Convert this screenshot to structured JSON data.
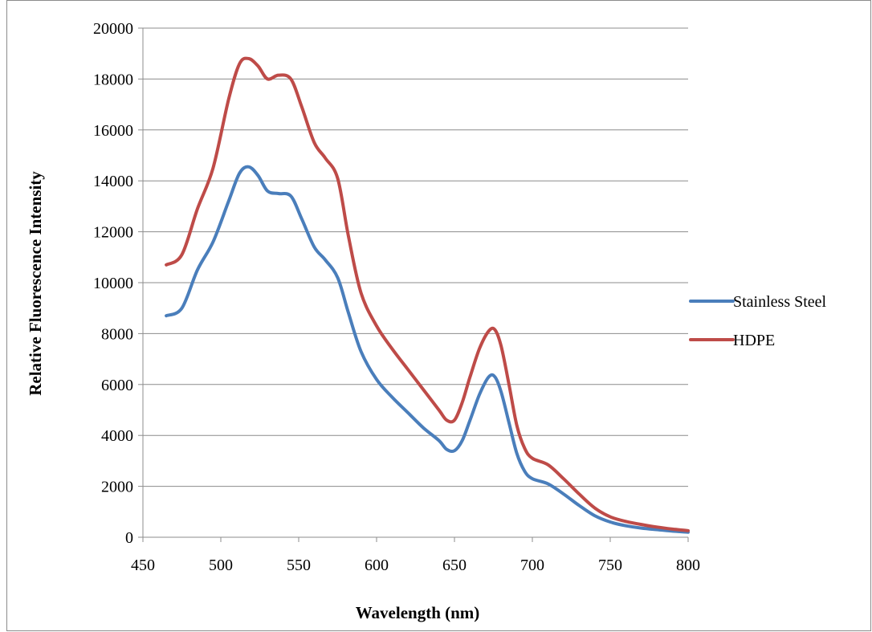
{
  "chart_data": {
    "type": "line",
    "title": "",
    "xlabel": "Wavelength (nm)",
    "ylabel": "Relative Fluorescence Intensity",
    "xlim": [
      450,
      800
    ],
    "ylim": [
      0,
      20000
    ],
    "x_ticks": [
      450,
      500,
      550,
      600,
      650,
      700,
      750,
      800
    ],
    "y_ticks": [
      0,
      2000,
      4000,
      6000,
      8000,
      10000,
      12000,
      14000,
      16000,
      18000,
      20000
    ],
    "grid": "horizontal",
    "legend_position": "right",
    "series": [
      {
        "name": "Stainless Steel",
        "color": "#4a7ebb",
        "x": [
          465,
          475,
          485,
          495,
          505,
          512,
          518,
          524,
          530,
          537,
          545,
          552,
          560,
          567,
          575,
          582,
          590,
          600,
          610,
          620,
          630,
          640,
          645,
          650,
          655,
          660,
          666,
          672,
          676,
          680,
          685,
          690,
          695,
          700,
          710,
          720,
          730,
          740,
          750,
          760,
          770,
          780,
          790,
          800
        ],
        "y": [
          8700,
          9000,
          10500,
          11600,
          13200,
          14300,
          14550,
          14200,
          13600,
          13500,
          13400,
          12500,
          11400,
          10900,
          10200,
          8800,
          7300,
          6200,
          5500,
          4900,
          4300,
          3800,
          3450,
          3400,
          3800,
          4600,
          5600,
          6300,
          6300,
          5700,
          4500,
          3300,
          2600,
          2300,
          2100,
          1700,
          1250,
          850,
          600,
          450,
          360,
          300,
          240,
          200
        ]
      },
      {
        "name": "HDPE",
        "color": "#be4b48",
        "x": [
          465,
          475,
          485,
          495,
          505,
          512,
          518,
          524,
          530,
          537,
          545,
          552,
          560,
          567,
          575,
          582,
          590,
          600,
          610,
          620,
          630,
          640,
          645,
          650,
          655,
          660,
          666,
          672,
          676,
          680,
          685,
          690,
          695,
          700,
          710,
          720,
          730,
          740,
          750,
          760,
          770,
          780,
          790,
          800
        ],
        "y": [
          10700,
          11100,
          12900,
          14500,
          17200,
          18600,
          18800,
          18500,
          18000,
          18150,
          18000,
          16900,
          15500,
          14900,
          14100,
          11800,
          9600,
          8300,
          7400,
          6600,
          5800,
          5000,
          4600,
          4600,
          5300,
          6300,
          7400,
          8100,
          8150,
          7500,
          6000,
          4400,
          3500,
          3100,
          2850,
          2300,
          1700,
          1150,
          800,
          620,
          500,
          400,
          320,
          260
        ]
      }
    ]
  }
}
